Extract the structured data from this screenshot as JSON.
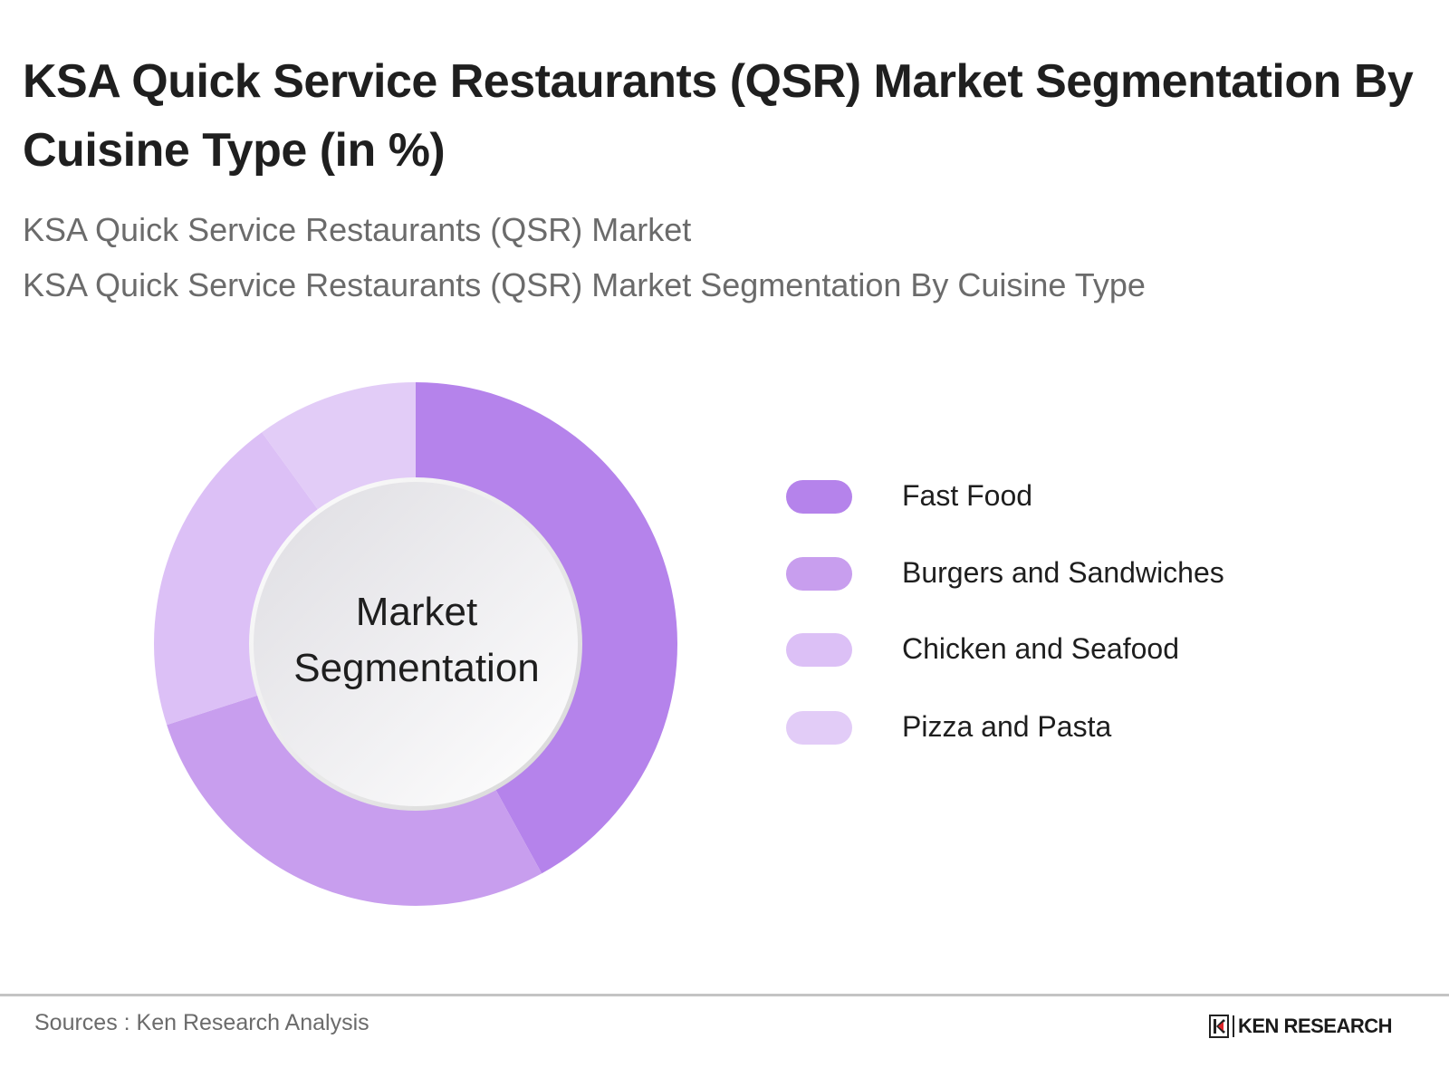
{
  "header": {
    "title": "KSA Quick Service Restaurants (QSR) Market Segmentation By Cuisine Type (in %)",
    "subtitle_1": "KSA Quick Service Restaurants (QSR) Market",
    "subtitle_2": "KSA Quick Service Restaurants (QSR) Market Segmentation By Cuisine Type"
  },
  "chart": {
    "center_label_line1": "Market",
    "center_label_line2": "Segmentation"
  },
  "legend": {
    "items": [
      {
        "label": "Fast Food",
        "color": "#B583EB"
      },
      {
        "label": "Burgers and Sandwiches",
        "color": "#C89EEE"
      },
      {
        "label": "Chicken and Seafood",
        "color": "#DCC0F6"
      },
      {
        "label": "Pizza and Pasta",
        "color": "#E2CCF7"
      }
    ]
  },
  "footer": {
    "source": "Sources : Ken Research Analysis",
    "logo_text": "KEN RESEARCH"
  },
  "chart_data": {
    "type": "pie",
    "subtype": "donut",
    "title": "KSA Quick Service Restaurants (QSR) Market Segmentation By Cuisine Type (in %)",
    "center_text": "Market Segmentation",
    "categories": [
      "Fast Food",
      "Burgers and Sandwiches",
      "Chicken and Seafood",
      "Pizza and Pasta"
    ],
    "values": [
      42,
      28,
      20,
      10
    ],
    "colors": [
      "#B583EB",
      "#C89EEE",
      "#DCC0F6",
      "#E2CCF7"
    ],
    "unit": "%",
    "start_angle_deg": 0,
    "direction": "clockwise",
    "legend_position": "right",
    "data_labels_shown": false
  }
}
